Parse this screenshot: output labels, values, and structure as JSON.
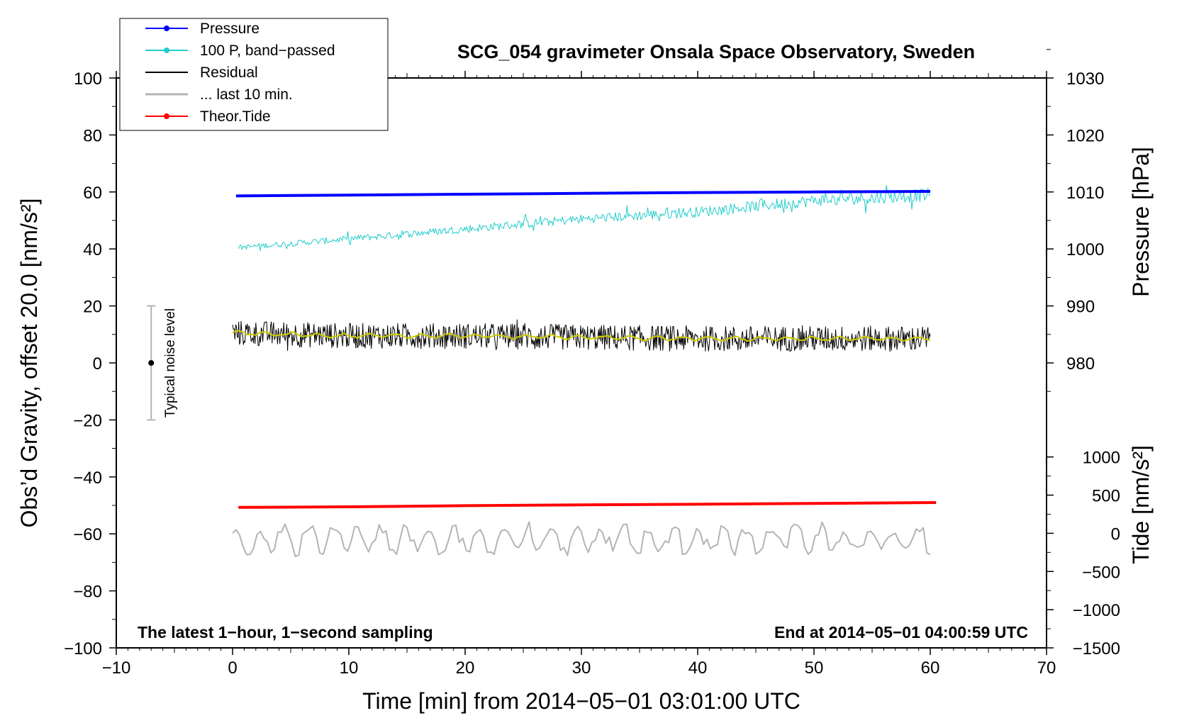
{
  "chart_data": {
    "type": "line",
    "title": "SCG_054 gravimeter Onsala Space Observatory, Sweden",
    "xlabel": "Time [min] from 2014−05−01 03:01:00 UTC",
    "ylabel_left": "Obs’d Gravity, offset 20.0 [nm/s²]",
    "ylabel_right_top": "Pressure [hPa]",
    "ylabel_right_bottom": "Tide [nm/s²]",
    "xlim": [
      -10,
      70
    ],
    "ylim_left": [
      -100,
      100
    ],
    "x_ticks": [
      -10,
      0,
      10,
      20,
      30,
      40,
      50,
      60,
      70
    ],
    "x_tick_labels": [
      "−10",
      "0",
      "10",
      "20",
      "30",
      "40",
      "50",
      "60",
      "70"
    ],
    "y_ticks_left": [
      100,
      80,
      60,
      40,
      20,
      0,
      -20,
      -40,
      -60,
      -80,
      -100
    ],
    "y_tick_labels_left": [
      "100",
      "80",
      "60",
      "40",
      "20",
      "0",
      "−20",
      "−40",
      "−60",
      "−80",
      "−100"
    ],
    "pressure_axis": {
      "ticks": [
        1030,
        1020,
        1010,
        1000,
        990,
        980
      ],
      "labels": [
        "1030",
        "1020",
        "1010",
        "1000",
        "990",
        "980"
      ],
      "left_value_at_1010": 60,
      "left_units_per_hPa": 2
    },
    "tide_axis": {
      "ticks": [
        1000,
        500,
        0,
        -500,
        -1000,
        -1500
      ],
      "labels": [
        "1000",
        "500",
        "0",
        "−500",
        "−1000",
        "−1500"
      ],
      "range": [
        -1500,
        1000
      ],
      "left_range": [
        -100,
        -33
      ]
    },
    "legend": [
      {
        "label": "Pressure",
        "color": "#0000ff",
        "marker": true
      },
      {
        "label": "100 P, band−passed",
        "color": "#22cccc",
        "marker": true
      },
      {
        "label": "Residual",
        "color": "#000000",
        "marker": false
      },
      {
        "label": "... last 10 min.",
        "color": "#b4b4b4",
        "marker": false
      },
      {
        "label": "Theor.Tide",
        "color": "#ff0000",
        "marker": true
      }
    ],
    "series": [
      {
        "name": "Pressure",
        "color": "#0000ff",
        "x": [
          0.3,
          10,
          20,
          30,
          40,
          50,
          60
        ],
        "y": [
          58.6,
          58.9,
          59.2,
          59.5,
          59.8,
          60.0,
          60.2
        ]
      },
      {
        "name": "100 P, band−passed",
        "color": "#22cccc",
        "x": [
          0.5,
          10,
          20,
          30,
          40,
          50,
          60
        ],
        "y": [
          40.5,
          43.5,
          47,
          50.5,
          53,
          57,
          59
        ]
      },
      {
        "name": "Residual",
        "color": "#000000",
        "x": [
          0,
          10,
          20,
          30,
          40,
          50,
          60
        ],
        "y": [
          10.5,
          9.5,
          9.5,
          9,
          8.5,
          8.5,
          8.5
        ],
        "noise_amplitude": 4.5
      },
      {
        "name": "Residual smoothed",
        "color": "#cccc00",
        "x": [
          0,
          10,
          20,
          30,
          40,
          50,
          60
        ],
        "y": [
          10.5,
          9.5,
          9.5,
          9,
          8.5,
          8.5,
          8.5
        ]
      },
      {
        "name": "... last 10 min.",
        "color": "#b4b4b4",
        "x": [
          0,
          10,
          20,
          30,
          40,
          50,
          60
        ],
        "y": [
          -62,
          -62,
          -62,
          -62,
          -62,
          -62,
          -62
        ],
        "noise_amplitude": 5
      },
      {
        "name": "Theor.Tide",
        "color": "#ff0000",
        "x": [
          0.5,
          10,
          20,
          30,
          40,
          50,
          60.5
        ],
        "y": [
          -50.7,
          -50.5,
          -50.1,
          -49.8,
          -49.6,
          -49.3,
          -49.0
        ]
      }
    ],
    "noise_bar": {
      "x": -7,
      "low": -20,
      "high": 20,
      "center": 0,
      "label": "Typical noise level"
    },
    "annotations": {
      "bottom_left": "The latest 1−hour, 1−second sampling",
      "bottom_right": "End at 2014−05−01 04:00:59 UTC"
    }
  }
}
